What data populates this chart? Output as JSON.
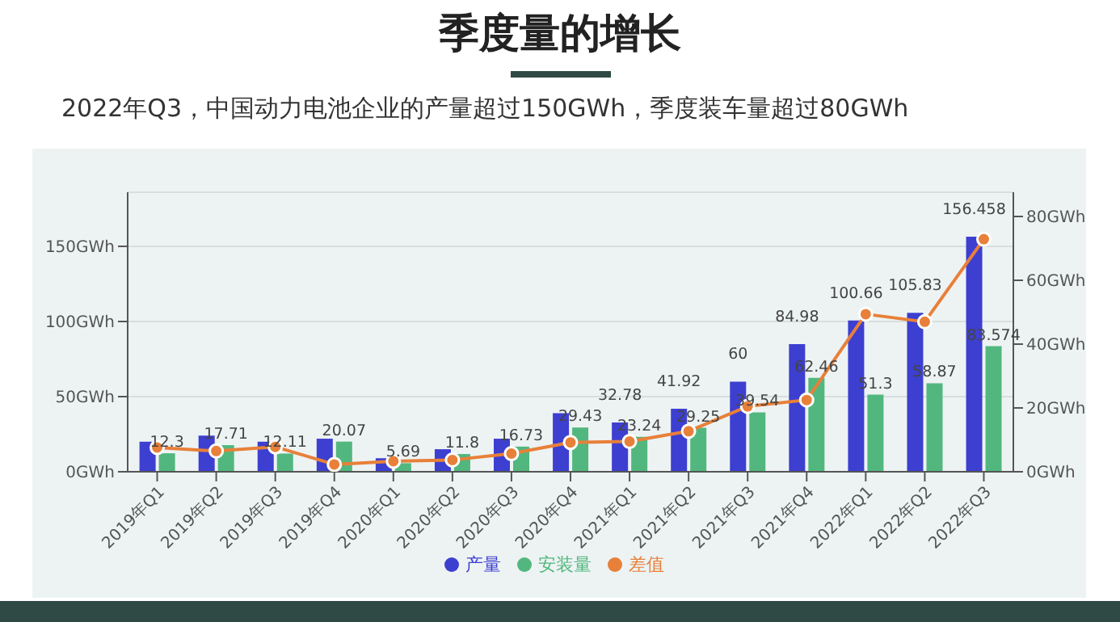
{
  "chart_data": {
    "type": "bar",
    "title": "季度量的增长",
    "subtitle": "2022年Q3，中国动力电池企业的产量超过150GWh，季度装车量超过80GWh",
    "categories": [
      "2019年Q1",
      "2019年Q2",
      "2019年Q3",
      "2019年Q4",
      "2020年Q1",
      "2020年Q2",
      "2020年Q3",
      "2020年Q4",
      "2021年Q1",
      "2021年Q2",
      "2021年Q3",
      "2021年Q4",
      "2022年Q1",
      "2022年Q2",
      "2022年Q3"
    ],
    "series": [
      {
        "name": "产量",
        "color": "#3d3fd0",
        "values": [
          20,
          24,
          20,
          22,
          9,
          15,
          22,
          39,
          32.78,
          41.92,
          60,
          84.98,
          100.66,
          105.83,
          156.458
        ],
        "value_labels": [
          null,
          null,
          null,
          null,
          null,
          null,
          null,
          null,
          "32.78",
          "41.92",
          "60",
          "84.98",
          "100.66",
          "105.83",
          "156.458"
        ]
      },
      {
        "name": "安装量",
        "color": "#52b77e",
        "values": [
          12.3,
          17.71,
          12.11,
          20.07,
          5.69,
          11.8,
          16.73,
          29.43,
          23.24,
          29.25,
          39.54,
          62.46,
          51.3,
          58.87,
          83.574
        ],
        "value_labels": [
          "12.3",
          "17.71",
          "12.11",
          "20.07",
          "5.69",
          "11.8",
          "16.73",
          "29.43",
          "23.24",
          "29.25",
          "39.54",
          "62.46",
          "51.3",
          "58.87",
          "83.574"
        ]
      },
      {
        "name": "差值",
        "type": "line",
        "axis": "y2",
        "color": "#e8803a",
        "values": [
          7.6,
          6.5,
          7.8,
          2.3,
          3.3,
          3.7,
          5.7,
          9.2,
          9.5,
          12.7,
          20.5,
          22.5,
          49.4,
          47.0,
          72.9
        ]
      }
    ],
    "ylim": [
      0,
      186
    ],
    "yticks": [
      {
        "value": 0,
        "label": "0GWh"
      },
      {
        "value": 50,
        "label": "50GWh"
      },
      {
        "value": 100,
        "label": "100GWh"
      },
      {
        "value": 150,
        "label": "150GWh"
      }
    ],
    "y2lim": [
      0,
      87.6
    ],
    "y2ticks": [
      {
        "value": 0,
        "label": "0GWh"
      },
      {
        "value": 20,
        "label": "20GWh"
      },
      {
        "value": 40,
        "label": "40GWh"
      },
      {
        "value": 60,
        "label": "60GWh"
      },
      {
        "value": 80,
        "label": "80GWh"
      }
    ],
    "grid": "y",
    "legend": "bottom",
    "marker": "circle",
    "line_style": "solid"
  }
}
